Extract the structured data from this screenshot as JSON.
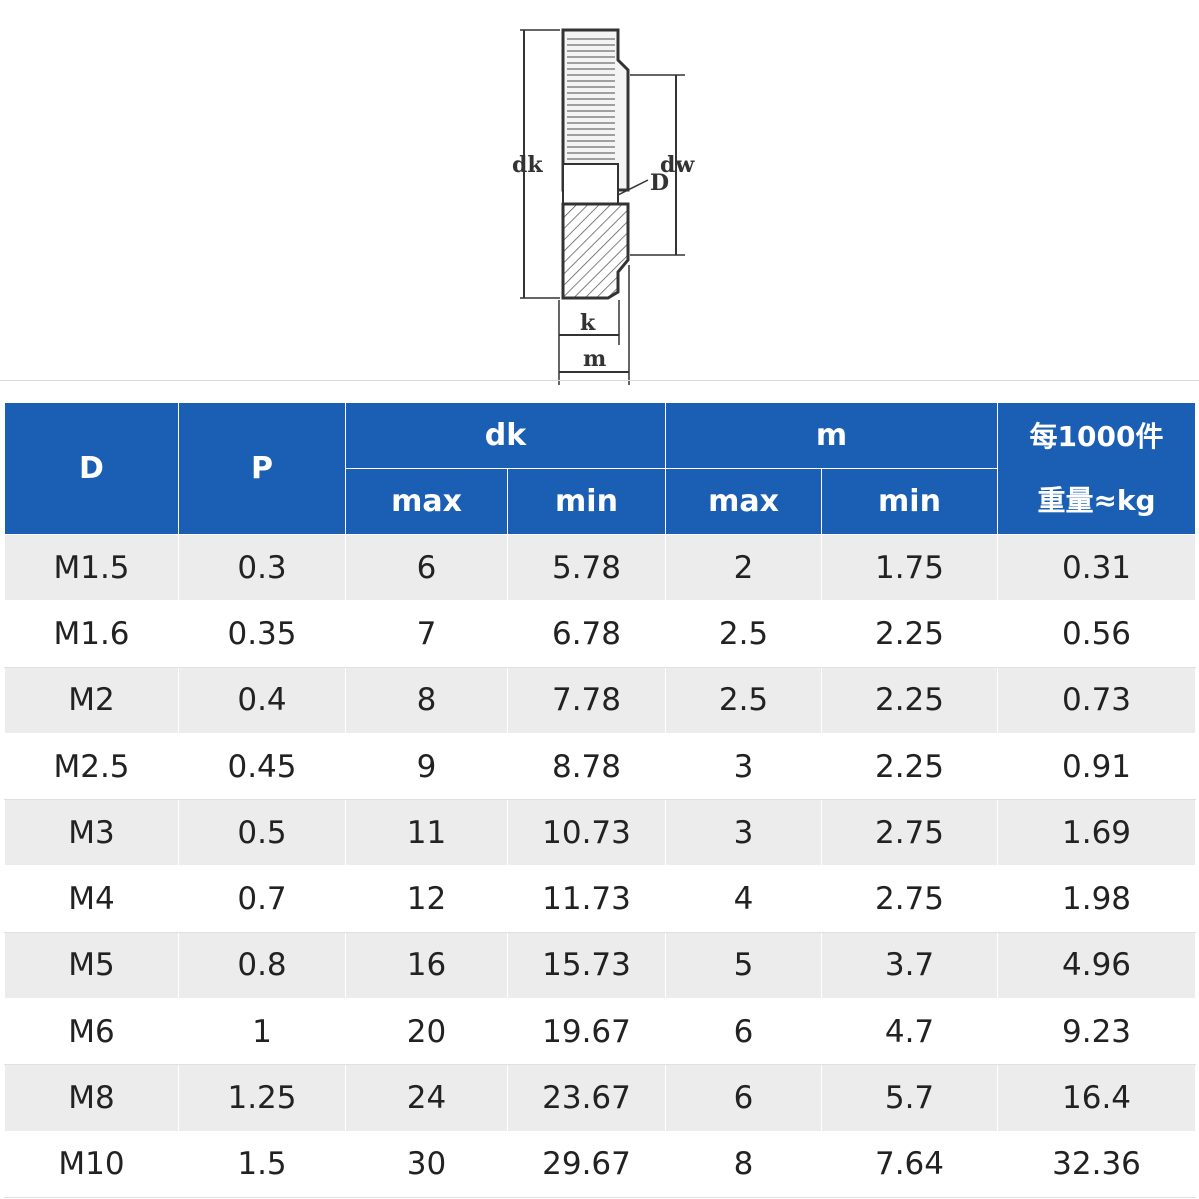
{
  "diagram": {
    "labels": {
      "dk": "dk",
      "dw": "dw",
      "D": "D",
      "k": "k",
      "m": "m"
    }
  },
  "table": {
    "headers": {
      "D": "D",
      "P": "P",
      "dk": "dk",
      "m": "m",
      "weight_line1": "每1000件",
      "weight_line2": "重量≈kg",
      "dk_max": "max",
      "dk_min": "min",
      "m_max": "max",
      "m_min": "min"
    },
    "rows": [
      [
        "M1.5",
        "0.3",
        "6",
        "5.78",
        "2",
        "1.75",
        "0.31"
      ],
      [
        "M1.6",
        "0.35",
        "7",
        "6.78",
        "2.5",
        "2.25",
        "0.56"
      ],
      [
        "M2",
        "0.4",
        "8",
        "7.78",
        "2.5",
        "2.25",
        "0.73"
      ],
      [
        "M2.5",
        "0.45",
        "9",
        "8.78",
        "3",
        "2.25",
        "0.91"
      ],
      [
        "M3",
        "0.5",
        "11",
        "10.73",
        "3",
        "2.75",
        "1.69"
      ],
      [
        "M4",
        "0.7",
        "12",
        "11.73",
        "4",
        "2.75",
        "1.98"
      ],
      [
        "M5",
        "0.8",
        "16",
        "15.73",
        "5",
        "3.7",
        "4.96"
      ],
      [
        "M6",
        "1",
        "20",
        "19.67",
        "6",
        "4.7",
        "9.23"
      ],
      [
        "M8",
        "1.25",
        "24",
        "23.67",
        "6",
        "5.7",
        "16.4"
      ],
      [
        "M10",
        "1.5",
        "30",
        "29.67",
        "8",
        "7.64",
        "32.36"
      ]
    ],
    "colors": {
      "header_bg": "#1a5fb4",
      "header_text": "#ffffff",
      "row_alt_bg": "#ececec"
    }
  }
}
